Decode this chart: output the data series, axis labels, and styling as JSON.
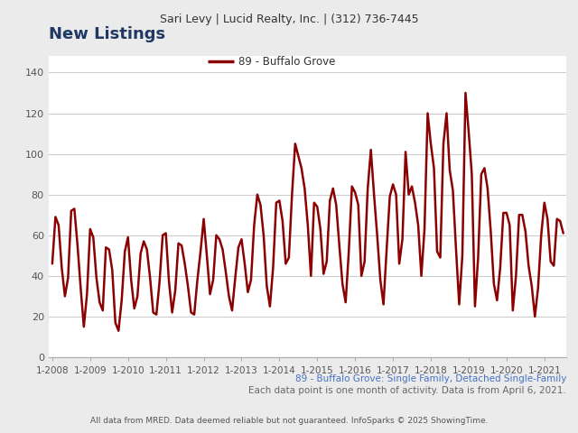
{
  "title_top": "Sari Levy | Lucid Realty, Inc. | (312) 736-7445",
  "chart_title": "New Listings",
  "legend_label": "89 - Buffalo Grove",
  "subtitle1": "89 - Buffalo Grove: Single Family, Detached Single-Family",
  "subtitle2": "Each data point is one month of activity. Data is from April 6, 2021.",
  "footer": "All data from MRED. Data deemed reliable but not guaranteed. InfoSparks © 2025 ShowingTime.",
  "line_color": "#8B0000",
  "title_color": "#1F3864",
  "subtitle_color": "#4472C4",
  "background_color": "#EBEBEB",
  "plot_bg_color": "#FFFFFF",
  "yticks": [
    0,
    20,
    40,
    60,
    80,
    100,
    120,
    140
  ],
  "ylim": [
    0,
    148
  ],
  "xtick_labels": [
    "1-2008",
    "1-2009",
    "1-2010",
    "1-2011",
    "1-2012",
    "1-2013",
    "1-2014",
    "1-2015",
    "1-2016",
    "1-2017",
    "1-2018",
    "1-2019",
    "1-2020",
    "1-2021"
  ],
  "values": [
    46,
    69,
    65,
    44,
    30,
    39,
    72,
    73,
    55,
    34,
    15,
    31,
    63,
    59,
    39,
    27,
    23,
    54,
    53,
    43,
    17,
    13,
    28,
    52,
    59,
    38,
    24,
    30,
    51,
    57,
    53,
    39,
    22,
    21,
    37,
    60,
    61,
    37,
    22,
    33,
    56,
    55,
    46,
    35,
    22,
    21,
    38,
    52,
    68,
    50,
    31,
    38,
    60,
    58,
    53,
    42,
    30,
    23,
    39,
    54,
    58,
    46,
    32,
    38,
    65,
    80,
    75,
    60,
    35,
    25,
    44,
    76,
    77,
    67,
    46,
    49,
    80,
    105,
    99,
    93,
    83,
    65,
    40,
    76,
    74,
    63,
    41,
    47,
    77,
    83,
    75,
    55,
    36,
    27,
    52,
    84,
    81,
    75,
    40,
    47,
    83,
    102,
    80,
    60,
    38,
    26,
    53,
    79,
    85,
    80,
    46,
    58,
    101,
    80,
    84,
    76,
    65,
    40,
    63,
    120,
    105,
    93,
    52,
    49,
    105,
    120,
    92,
    82,
    53,
    26,
    50,
    130,
    111,
    90,
    25,
    49,
    90,
    93,
    83,
    62,
    36,
    28,
    44,
    71,
    71,
    65,
    23,
    40,
    70,
    70,
    62,
    45,
    35,
    20,
    34,
    60,
    76,
    68,
    47,
    45,
    68,
    67,
    61
  ]
}
